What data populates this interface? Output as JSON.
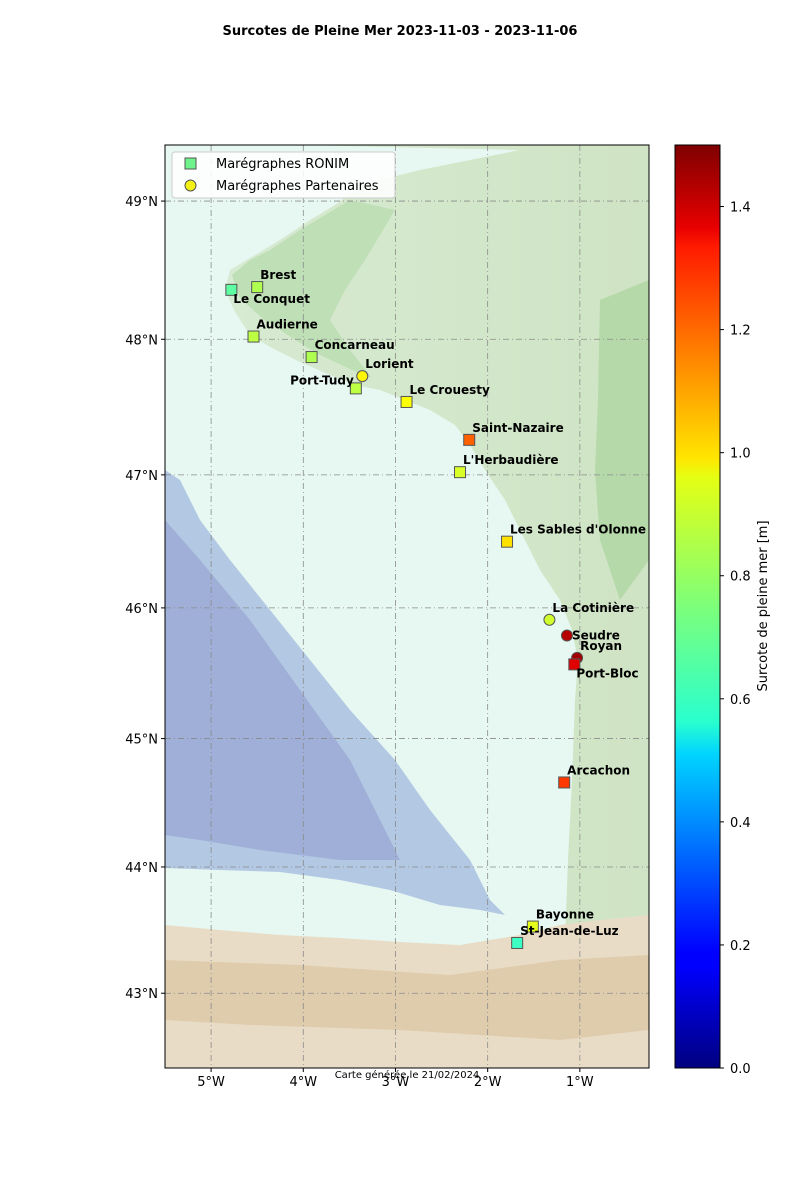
{
  "title": "Surcotes de Pleine Mer 2023-11-03 - 2023-11-06",
  "credit": "Carte générée le 21/02/2024",
  "legend": {
    "ronim": "Marégraphes RONIM",
    "partenaires": "Marégraphes Partenaires"
  },
  "colorbar": {
    "label": "Surcote de pleine mer [m]",
    "min": 0.0,
    "max": 1.5,
    "ticks": [
      {
        "v": 0.0,
        "label": "0.0"
      },
      {
        "v": 0.2,
        "label": "0.2"
      },
      {
        "v": 0.4,
        "label": "0.4"
      },
      {
        "v": 0.6,
        "label": "0.6"
      },
      {
        "v": 0.8,
        "label": "0.8"
      },
      {
        "v": 1.0,
        "label": "1.0"
      },
      {
        "v": 1.2,
        "label": "1.2"
      },
      {
        "v": 1.4,
        "label": "1.4"
      }
    ],
    "colormap": "jet"
  },
  "map": {
    "extent": {
      "lon_min": -5.5,
      "lon_max": -0.25,
      "lat_min": 42.4,
      "lat_max": 49.4
    },
    "grid": true,
    "x_ticks": [
      {
        "v": -5,
        "label": "5°W"
      },
      {
        "v": -4,
        "label": "4°W"
      },
      {
        "v": -3,
        "label": "3°W"
      },
      {
        "v": -2,
        "label": "2°W"
      },
      {
        "v": -1,
        "label": "1°W"
      }
    ],
    "y_ticks": [
      {
        "v": 43,
        "label": "43°N"
      },
      {
        "v": 44,
        "label": "44°N"
      },
      {
        "v": 45,
        "label": "45°N"
      },
      {
        "v": 46,
        "label": "46°N"
      },
      {
        "v": 47,
        "label": "47°N"
      },
      {
        "v": 48,
        "label": "48°N"
      },
      {
        "v": 49,
        "label": "49°N"
      }
    ]
  },
  "stations": [
    {
      "name": "Brest",
      "network": "RONIM",
      "lon": -4.5,
      "lat": 48.38,
      "surge": 0.82,
      "label_pos": "above-right"
    },
    {
      "name": "Le Conquet",
      "network": "RONIM",
      "lon": -4.78,
      "lat": 48.36,
      "surge": 0.7,
      "label_pos": "below-right"
    },
    {
      "name": "Audierne",
      "network": "RONIM",
      "lon": -4.54,
      "lat": 48.02,
      "surge": 0.84,
      "label_pos": "above-right"
    },
    {
      "name": "Concarneau",
      "network": "RONIM",
      "lon": -3.91,
      "lat": 47.87,
      "surge": 0.82,
      "label_pos": "above-right"
    },
    {
      "name": "Lorient",
      "network": "Partenaires",
      "lon": -3.36,
      "lat": 47.73,
      "surge": 0.95,
      "label_pos": "above-right"
    },
    {
      "name": "Port-Tudy",
      "network": "RONIM",
      "lon": -3.43,
      "lat": 47.64,
      "surge": 0.84,
      "label_pos": "above-left"
    },
    {
      "name": "Le Crouesty",
      "network": "RONIM",
      "lon": -2.88,
      "lat": 47.54,
      "surge": 0.93,
      "label_pos": "above-right"
    },
    {
      "name": "Saint-Nazaire",
      "network": "RONIM",
      "lon": -2.2,
      "lat": 47.26,
      "surge": 1.17,
      "label_pos": "above-right"
    },
    {
      "name": "L'Herbaudière",
      "network": "RONIM",
      "lon": -2.3,
      "lat": 47.02,
      "surge": 0.88,
      "label_pos": "above-right"
    },
    {
      "name": "Les Sables d'Olonne",
      "network": "RONIM",
      "lon": -1.79,
      "lat": 46.5,
      "surge": 0.98,
      "label_pos": "above-right"
    },
    {
      "name": "La Cotinière",
      "network": "Partenaires",
      "lon": -1.33,
      "lat": 45.91,
      "surge": 0.87,
      "label_pos": "above-right"
    },
    {
      "name": "Seudre",
      "network": "Partenaires",
      "lon": -1.14,
      "lat": 45.79,
      "surge": 1.42,
      "label_pos": "right"
    },
    {
      "name": "Royan",
      "network": "Partenaires",
      "lon": -1.03,
      "lat": 45.62,
      "surge": 1.45,
      "label_pos": "above-right"
    },
    {
      "name": "Port-Bloc",
      "network": "RONIM",
      "lon": -1.06,
      "lat": 45.57,
      "surge": 1.36,
      "label_pos": "below-right"
    },
    {
      "name": "Arcachon",
      "network": "RONIM",
      "lon": -1.17,
      "lat": 44.66,
      "surge": 1.23,
      "label_pos": "above-right"
    },
    {
      "name": "Bayonne",
      "network": "RONIM",
      "lon": -1.51,
      "lat": 43.53,
      "surge": 0.9,
      "label_pos": "above-right"
    },
    {
      "name": "St-Jean-de-Luz",
      "network": "RONIM",
      "lon": -1.68,
      "lat": 43.4,
      "surge": 0.65,
      "label_pos": "above-right"
    }
  ]
}
